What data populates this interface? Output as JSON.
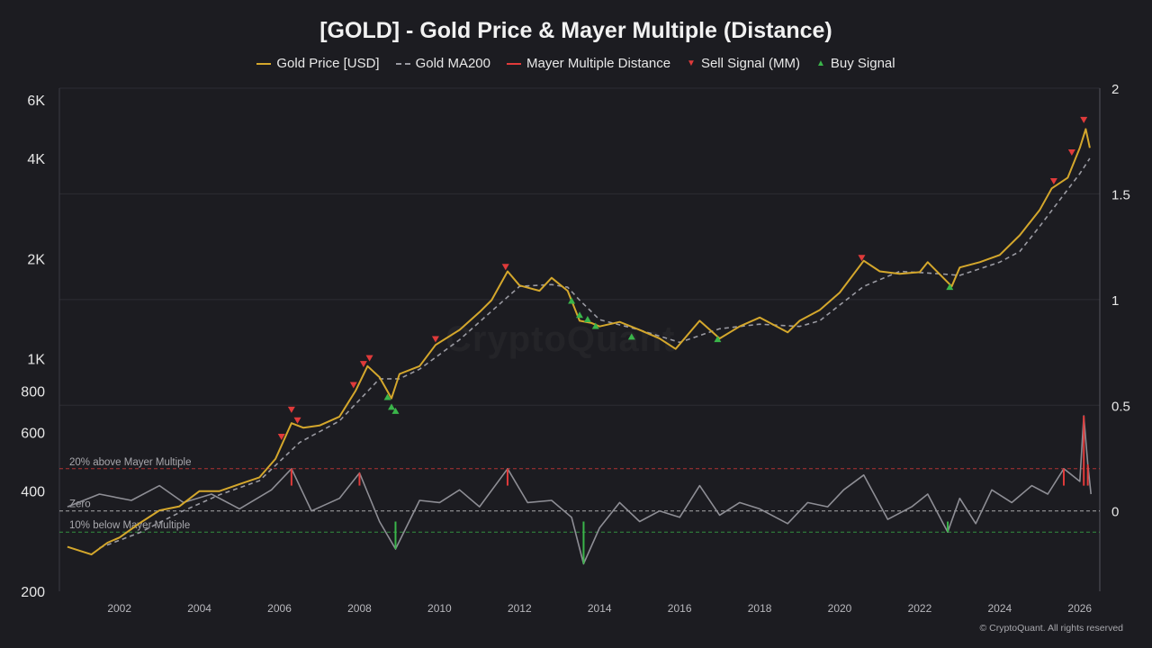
{
  "title": "[GOLD] - Gold Price & Mayer Multiple (Distance)",
  "legend": [
    {
      "label": "Gold Price [USD]",
      "kind": "line",
      "color": "#d4a72c"
    },
    {
      "label": "Gold MA200",
      "kind": "dash",
      "color": "#9a9aa2"
    },
    {
      "label": "Mayer Multiple Distance",
      "kind": "line",
      "color": "#e03a3a"
    },
    {
      "label": "Sell Signal (MM)",
      "kind": "tri-down",
      "color": "#e03a3a"
    },
    {
      "label": "Buy Signal",
      "kind": "tri-up",
      "color": "#3ab54a"
    }
  ],
  "watermark": "CryptoQuant",
  "footer": "© CryptoQuant. All rights reserved",
  "colors": {
    "background": "#1c1c21",
    "gold": "#d4a72c",
    "ma": "#9a9aa2",
    "mm": "#8e8e95",
    "sell": "#e03a3a",
    "buy": "#3ab54a",
    "grid": "#2c2c33"
  },
  "chart_data": {
    "type": "line",
    "title": "[GOLD] - Gold Price & Mayer Multiple (Distance)",
    "x_range": [
      2000.5,
      2026.5
    ],
    "y_left": {
      "scale": "log",
      "range": [
        200,
        6500
      ],
      "ticks": [
        200,
        400,
        600,
        800,
        1000,
        2000,
        4000,
        6000
      ],
      "tick_labels": [
        "200",
        "400",
        "600",
        "800",
        "1K",
        "2K",
        "4K",
        "6K"
      ]
    },
    "y_right": {
      "scale": "linear",
      "range": [
        -0.38,
        2.0
      ],
      "ticks": [
        0,
        0.5,
        1,
        1.5,
        2
      ],
      "tick_labels": [
        "0",
        "0.5",
        "1",
        "1.5",
        "2"
      ]
    },
    "x_ticks": [
      2002,
      2004,
      2006,
      2008,
      2010,
      2012,
      2014,
      2016,
      2018,
      2020,
      2022,
      2024,
      2026
    ],
    "x_tick_labels": [
      "2002",
      "2004",
      "2006",
      "2008",
      "2010",
      "2012",
      "2014",
      "2016",
      "2018",
      "2020",
      "2022",
      "2024",
      "2026"
    ],
    "reference_lines": [
      {
        "label": "20% above Mayer Multiple",
        "value": 0.2,
        "style": "dashed",
        "color": "#e03a3a"
      },
      {
        "label": "Zero",
        "value": 0,
        "style": "dashed",
        "color": "#d8d8d8"
      },
      {
        "label": "10% below Mayer Multiple",
        "value": -0.1,
        "style": "dashed",
        "color": "#3ab54a"
      }
    ],
    "series": [
      {
        "name": "Gold Price [USD]",
        "axis": "left",
        "x": [
          2000.7,
          2001.0,
          2001.3,
          2001.7,
          2002.0,
          2002.5,
          2003.0,
          2003.5,
          2004.0,
          2004.5,
          2005.0,
          2005.5,
          2005.9,
          2006.3,
          2006.6,
          2007.0,
          2007.5,
          2007.9,
          2008.2,
          2008.5,
          2008.8,
          2009.0,
          2009.5,
          2009.9,
          2010.5,
          2011.0,
          2011.3,
          2011.7,
          2012.0,
          2012.5,
          2012.8,
          2013.2,
          2013.5,
          2013.8,
          2014.0,
          2014.5,
          2015.0,
          2015.5,
          2015.9,
          2016.5,
          2017.0,
          2017.5,
          2018.0,
          2018.7,
          2019.0,
          2019.5,
          2020.0,
          2020.6,
          2021.0,
          2021.5,
          2022.0,
          2022.2,
          2022.8,
          2023.0,
          2023.5,
          2024.0,
          2024.5,
          2025.0,
          2025.3,
          2025.7,
          2026.0,
          2026.15,
          2026.25
        ],
        "values": [
          272,
          265,
          258,
          280,
          290,
          320,
          350,
          360,
          400,
          400,
          420,
          440,
          500,
          640,
          620,
          630,
          670,
          800,
          950,
          880,
          760,
          900,
          950,
          1100,
          1220,
          1380,
          1500,
          1830,
          1660,
          1600,
          1750,
          1600,
          1300,
          1280,
          1250,
          1290,
          1220,
          1150,
          1070,
          1300,
          1150,
          1250,
          1330,
          1200,
          1300,
          1400,
          1580,
          1970,
          1830,
          1800,
          1820,
          1950,
          1650,
          1880,
          1950,
          2050,
          2350,
          2800,
          3250,
          3500,
          4300,
          4900,
          4300
        ]
      },
      {
        "name": "Gold MA200",
        "axis": "left",
        "x": [
          2001.5,
          2002.5,
          2003.5,
          2004.5,
          2005.5,
          2006.5,
          2007.5,
          2008.5,
          2009.0,
          2009.5,
          2010.5,
          2011.5,
          2012.0,
          2012.8,
          2013.2,
          2013.5,
          2014.0,
          2015.0,
          2016.0,
          2017.0,
          2018.0,
          2019.0,
          2019.5,
          2020.0,
          2020.6,
          2021.5,
          2022.5,
          2023.0,
          2024.0,
          2024.5,
          2025.0,
          2025.5,
          2026.0,
          2026.25
        ],
        "values": [
          270,
          300,
          345,
          390,
          430,
          560,
          650,
          870,
          870,
          930,
          1140,
          1460,
          1650,
          1670,
          1640,
          1500,
          1310,
          1220,
          1120,
          1230,
          1270,
          1250,
          1300,
          1450,
          1650,
          1830,
          1800,
          1780,
          1950,
          2100,
          2500,
          3000,
          3600,
          4000
        ]
      },
      {
        "name": "Mayer Multiple Distance",
        "axis": "right",
        "x": [
          2000.7,
          2001.5,
          2002.3,
          2003.0,
          2003.6,
          2004.3,
          2005.0,
          2005.8,
          2006.3,
          2006.8,
          2007.5,
          2008.0,
          2008.5,
          2008.9,
          2009.5,
          2010.0,
          2010.5,
          2011.0,
          2011.7,
          2012.2,
          2012.8,
          2013.3,
          2013.6,
          2014.0,
          2014.5,
          2015.0,
          2015.5,
          2016.0,
          2016.5,
          2017.0,
          2017.5,
          2018.0,
          2018.7,
          2019.2,
          2019.7,
          2020.1,
          2020.6,
          2021.2,
          2021.8,
          2022.2,
          2022.7,
          2023.0,
          2023.4,
          2023.8,
          2024.3,
          2024.8,
          2025.2,
          2025.6,
          2026.0,
          2026.1,
          2026.2,
          2026.28
        ],
        "values": [
          0.02,
          0.08,
          0.05,
          0.12,
          0.04,
          0.08,
          0.01,
          0.1,
          0.2,
          0.0,
          0.06,
          0.18,
          -0.05,
          -0.18,
          0.05,
          0.04,
          0.1,
          0.02,
          0.2,
          0.04,
          0.05,
          -0.03,
          -0.25,
          -0.08,
          0.04,
          -0.05,
          0.0,
          -0.03,
          0.12,
          -0.02,
          0.04,
          0.01,
          -0.06,
          0.04,
          0.02,
          0.1,
          0.17,
          -0.04,
          0.02,
          0.08,
          -0.1,
          0.06,
          -0.06,
          0.1,
          0.04,
          0.12,
          0.08,
          0.2,
          0.14,
          0.45,
          0.22,
          0.08
        ]
      }
    ],
    "sell_signals": [
      {
        "x": 2006.05,
        "value": 580
      },
      {
        "x": 2006.3,
        "value": 700
      },
      {
        "x": 2006.45,
        "value": 650
      },
      {
        "x": 2007.85,
        "value": 830
      },
      {
        "x": 2008.1,
        "value": 960
      },
      {
        "x": 2008.25,
        "value": 1000
      },
      {
        "x": 2009.9,
        "value": 1140
      },
      {
        "x": 2011.65,
        "value": 1880
      },
      {
        "x": 2020.55,
        "value": 2000
      },
      {
        "x": 2025.35,
        "value": 3400
      },
      {
        "x": 2025.8,
        "value": 4150
      },
      {
        "x": 2026.1,
        "value": 5200
      }
    ],
    "buy_signals": [
      {
        "x": 2008.7,
        "value": 770
      },
      {
        "x": 2008.8,
        "value": 720
      },
      {
        "x": 2008.9,
        "value": 700
      },
      {
        "x": 2013.3,
        "value": 1500
      },
      {
        "x": 2013.5,
        "value": 1360
      },
      {
        "x": 2013.7,
        "value": 1320
      },
      {
        "x": 2013.9,
        "value": 1260
      },
      {
        "x": 2014.8,
        "value": 1170
      },
      {
        "x": 2016.95,
        "value": 1150
      },
      {
        "x": 2022.75,
        "value": 1650
      }
    ]
  }
}
